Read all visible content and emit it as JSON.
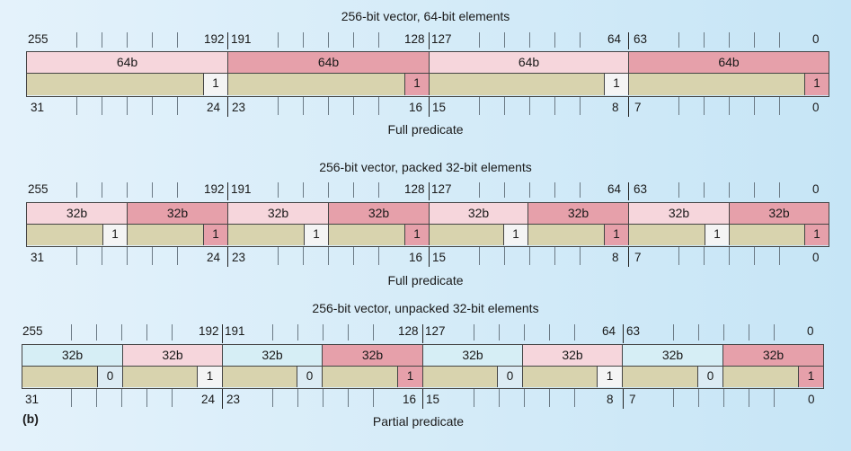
{
  "panels": [
    {
      "title": "256-bit vector, 64-bit elements",
      "footer": "Full predicate",
      "top_labels": [
        "255",
        "192",
        "191",
        "128",
        "127",
        "64",
        "63",
        "0"
      ],
      "bottom_labels": [
        "31",
        "24",
        "23",
        "16",
        "15",
        "8",
        "7",
        "0"
      ],
      "elements": [
        "64b",
        "64b",
        "64b",
        "64b"
      ],
      "predicate_bits": [
        "1",
        "1",
        "1",
        "1"
      ]
    },
    {
      "title": "256-bit vector, packed 32-bit elements",
      "footer": "Full predicate",
      "top_labels": [
        "255",
        "192",
        "191",
        "128",
        "127",
        "64",
        "63",
        "0"
      ],
      "bottom_labels": [
        "31",
        "24",
        "23",
        "16",
        "15",
        "8",
        "7",
        "0"
      ],
      "elements": [
        "32b",
        "32b",
        "32b",
        "32b",
        "32b",
        "32b",
        "32b",
        "32b"
      ],
      "predicate_bits": [
        "1",
        "1",
        "1",
        "1",
        "1",
        "1",
        "1",
        "1"
      ]
    },
    {
      "title": "256-bit vector, unpacked 32-bit elements",
      "footer": "Partial predicate",
      "top_labels": [
        "255",
        "192",
        "191",
        "128",
        "127",
        "64",
        "63",
        "0"
      ],
      "bottom_labels": [
        "31",
        "24",
        "23",
        "16",
        "15",
        "8",
        "7",
        "0"
      ],
      "elements": [
        "32b",
        "32b",
        "32b",
        "32b",
        "32b",
        "32b",
        "32b",
        "32b"
      ],
      "predicate_bits": [
        "0",
        "1",
        "0",
        "1",
        "0",
        "1",
        "0",
        "1"
      ]
    }
  ],
  "figure_label": "(b)",
  "colors": {
    "light_pink": "#f6d6dc",
    "dark_pink": "#e6a0aa",
    "light_blue": "#d6eef5",
    "predicate_fill": "#d8d3ae",
    "predicate_bit_fill": "#f4f4f4"
  }
}
